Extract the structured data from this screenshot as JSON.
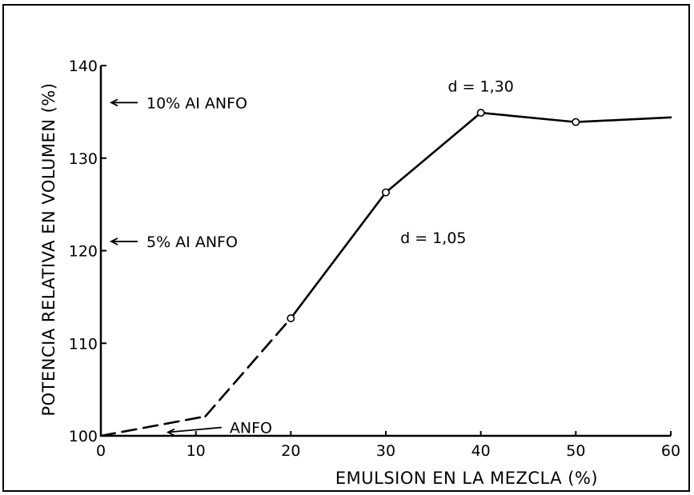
{
  "chart_data": {
    "type": "line",
    "title": "",
    "xlabel": "EMULSION EN LA MEZCLA (%)",
    "ylabel": "POTENCIA RELATIVA EN VOLUMEN (%)",
    "xlim": [
      0,
      60
    ],
    "ylim": [
      100,
      140
    ],
    "x_ticks": [
      "0",
      "10",
      "20",
      "30",
      "40",
      "50",
      "60"
    ],
    "y_ticks": [
      "100",
      "110",
      "120",
      "130",
      "140"
    ],
    "grid": false,
    "series": [
      {
        "points": [
          {
            "x": 0,
            "y": 100
          },
          {
            "x": 11,
            "y": 102.1
          },
          {
            "x": 20,
            "y": 112.7
          },
          {
            "x": 30,
            "y": 126.3
          },
          {
            "x": 40,
            "y": 134.9
          },
          {
            "x": 50,
            "y": 133.9
          },
          {
            "x": 60,
            "y": 134.4
          }
        ],
        "dashed_until_x": 30,
        "markers_at_x": [
          20,
          30,
          40,
          50
        ]
      }
    ],
    "annotations": [
      {
        "id": "anfo10",
        "text": "10% AI ANFO",
        "y": 136,
        "arrow": true
      },
      {
        "id": "anfo5",
        "text": "5% AI ANFO",
        "y": 121,
        "arrow": true
      },
      {
        "id": "anfo",
        "text": "ANFO",
        "x": 8,
        "y": 100.3,
        "arrow": true
      },
      {
        "id": "d105",
        "text": "d = 1,05",
        "x": 35,
        "y": 120.8
      },
      {
        "id": "d130",
        "text": "d = 1,30",
        "x": 40,
        "y": 137.2
      }
    ]
  }
}
